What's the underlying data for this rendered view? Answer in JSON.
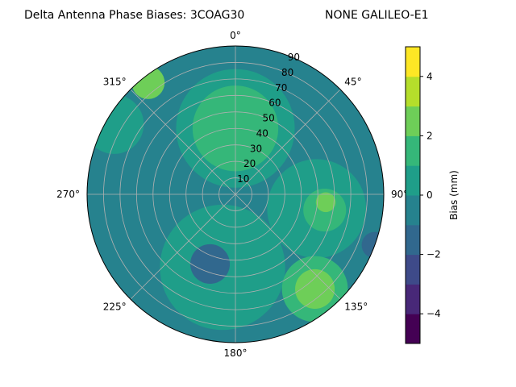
{
  "chart_data": {
    "type": "polar-contour",
    "title": "Delta Antenna Phase Biases: 3COAG30",
    "subtitle": "NONE GALILEO-E1",
    "angular_ticks": [
      {
        "deg": 0,
        "label": "0°"
      },
      {
        "deg": 45,
        "label": "45°"
      },
      {
        "deg": 90,
        "label": "90°"
      },
      {
        "deg": 135,
        "label": "135°"
      },
      {
        "deg": 180,
        "label": "180°"
      },
      {
        "deg": 225,
        "label": "225°"
      },
      {
        "deg": 270,
        "label": "270°"
      },
      {
        "deg": 315,
        "label": "315°"
      }
    ],
    "radial_ticks": [
      10,
      20,
      30,
      40,
      50,
      60,
      70,
      80,
      90
    ],
    "radial_range": [
      0,
      90
    ],
    "grid": true,
    "colorbar": {
      "label": "Bias (mm)",
      "range": [
        -5,
        5
      ],
      "levels": [
        -5,
        -4,
        -3,
        -2,
        -1,
        0,
        1,
        2,
        3,
        4,
        5
      ],
      "tick_values": [
        -4,
        -2,
        0,
        2,
        4
      ],
      "tick_labels": [
        "−4",
        "−2",
        "0",
        "2",
        "4"
      ],
      "colors": [
        "#440154",
        "#482878",
        "#3e4a89",
        "#31688e",
        "#26828e",
        "#1f9e89",
        "#35b779",
        "#6ece58",
        "#b5de2b",
        "#fde725"
      ]
    },
    "background_level": -1,
    "regions": [
      {
        "level": 0,
        "azimuth_deg": 190,
        "zenith_deg": 45,
        "radius_deg": 38
      },
      {
        "level": 0,
        "azimuth_deg": 0,
        "zenith_deg": 40,
        "radius_deg": 36
      },
      {
        "level": 0,
        "azimuth_deg": 100,
        "zenith_deg": 50,
        "radius_deg": 30
      },
      {
        "level": 0,
        "azimuth_deg": 300,
        "zenith_deg": 85,
        "radius_deg": 18
      },
      {
        "level": 1,
        "azimuth_deg": 0,
        "zenith_deg": 40,
        "radius_deg": 26
      },
      {
        "level": 1,
        "azimuth_deg": 140,
        "zenith_deg": 75,
        "radius_deg": 20
      },
      {
        "level": 1,
        "azimuth_deg": 100,
        "zenith_deg": 55,
        "radius_deg": 13
      },
      {
        "level": 2,
        "azimuth_deg": 140,
        "zenith_deg": 75,
        "radius_deg": 12
      },
      {
        "level": 2,
        "azimuth_deg": 95,
        "zenith_deg": 55,
        "radius_deg": 6
      },
      {
        "level": 2,
        "azimuth_deg": 322,
        "zenith_deg": 86,
        "radius_deg": 10
      },
      {
        "level": -2,
        "azimuth_deg": 200,
        "zenith_deg": 45,
        "radius_deg": 12
      },
      {
        "level": -2,
        "azimuth_deg": 110,
        "zenith_deg": 90,
        "radius_deg": 8
      }
    ]
  }
}
